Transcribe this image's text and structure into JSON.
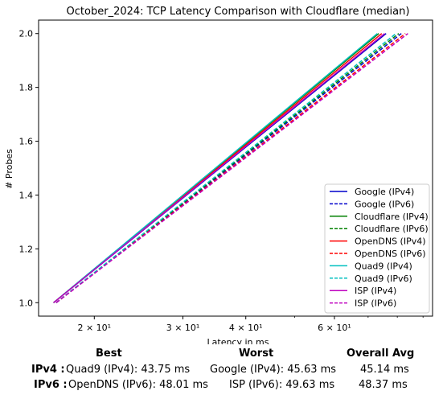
{
  "chart_data": {
    "type": "line",
    "title": "October_2024: TCP Latency Comparison with Cloudflare (median)",
    "xlabel": "Latency in ms",
    "ylabel": "# Probes",
    "xscale": "log",
    "xlim": [
      15.5,
      94
    ],
    "ylim": [
      0.95,
      2.05
    ],
    "xticks": [
      {
        "value": 20,
        "label": "2 × 10¹"
      },
      {
        "value": 30,
        "label": "3 × 10¹"
      },
      {
        "value": 40,
        "label": "4 × 10¹"
      },
      {
        "value": 60,
        "label": "6 × 10¹"
      }
    ],
    "yticks": [
      {
        "value": 1.0,
        "label": "1.0"
      },
      {
        "value": 1.2,
        "label": "1.2"
      },
      {
        "value": 1.4,
        "label": "1.4"
      },
      {
        "value": 1.6,
        "label": "1.6"
      },
      {
        "value": 1.8,
        "label": "1.8"
      },
      {
        "value": 2.0,
        "label": "2.0"
      }
    ],
    "grid": false,
    "legend_position": "bottom-right",
    "series": [
      {
        "name": "Google (IPv4)",
        "color": "#0000cc",
        "dash": "solid",
        "x": [
          16.6,
          76.0
        ],
        "y": [
          1.0,
          2.0
        ]
      },
      {
        "name": "Google (IPv6)",
        "color": "#0000cc",
        "dash": "dashed",
        "x": [
          16.8,
          81.5
        ],
        "y": [
          1.0,
          2.0
        ]
      },
      {
        "name": "Cloudflare (IPv4)",
        "color": "#008000",
        "dash": "solid",
        "x": [
          16.6,
          73.5
        ],
        "y": [
          1.0,
          2.0
        ]
      },
      {
        "name": "Cloudflare (IPv6)",
        "color": "#008000",
        "dash": "dashed",
        "x": [
          16.8,
          80.5
        ],
        "y": [
          1.0,
          2.0
        ]
      },
      {
        "name": "OpenDNS (IPv4)",
        "color": "#ff0000",
        "dash": "solid",
        "x": [
          16.6,
          74.5
        ],
        "y": [
          1.0,
          2.0
        ]
      },
      {
        "name": "OpenDNS (IPv6)",
        "color": "#ff0000",
        "dash": "dashed",
        "x": [
          16.8,
          83.0
        ],
        "y": [
          1.0,
          2.0
        ]
      },
      {
        "name": "Quad9 (IPv4)",
        "color": "#00bfbf",
        "dash": "solid",
        "x": [
          16.6,
          73.0
        ],
        "y": [
          1.0,
          2.0
        ]
      },
      {
        "name": "Quad9 (IPv6)",
        "color": "#00bfbf",
        "dash": "dashed",
        "x": [
          16.8,
          79.5
        ],
        "y": [
          1.0,
          2.0
        ]
      },
      {
        "name": "ISP (IPv4)",
        "color": "#bf00bf",
        "dash": "solid",
        "x": [
          16.6,
          75.5
        ],
        "y": [
          1.0,
          2.0
        ]
      },
      {
        "name": "ISP (IPv6)",
        "color": "#bf00bf",
        "dash": "dashed",
        "x": [
          16.8,
          84.0
        ],
        "y": [
          1.0,
          2.0
        ]
      }
    ]
  },
  "summary": {
    "headers": {
      "best": "Best",
      "worst": "Worst",
      "avg": "Overall Avg"
    },
    "rows": [
      {
        "label": "IPv4 :",
        "best": "Quad9 (IPv4): 43.75 ms",
        "worst": "Google (IPv4): 45.63 ms",
        "avg": "45.14 ms"
      },
      {
        "label": "IPv6 :",
        "best": "OpenDNS (IPv6): 48.01 ms",
        "worst": "ISP (IPv6): 49.63 ms",
        "avg": "48.37 ms"
      }
    ]
  }
}
